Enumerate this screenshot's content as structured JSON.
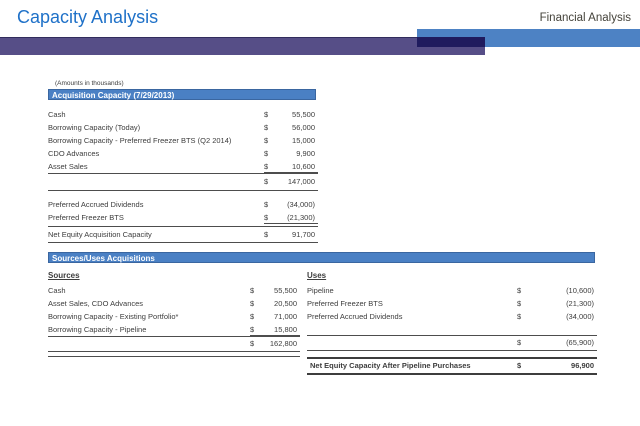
{
  "colors": {
    "title_blue": "#1F71C8",
    "bar_blue": "#4D82C4",
    "bar_purple": "#564E87",
    "bar_overlap": "#1F1B5E",
    "section_bar_blue": "#4A80C4",
    "text": "#3D3D3D",
    "line": "#4D4D4D"
  },
  "currency": "$",
  "header": {
    "title": "Capacity Analysis",
    "right_label": "Financial Analysis"
  },
  "note": "(Amounts in thousands)",
  "acquisition": {
    "header": "Acquisition Capacity (7/29/2013)",
    "rows": [
      {
        "label": "Cash",
        "value": "55,500"
      },
      {
        "label": "Borrowing Capacity (Today)",
        "value": "56,000"
      },
      {
        "label": "Borrowing Capacity - Preferred Freezer BTS (Q2 2014)",
        "value": "15,000"
      },
      {
        "label": "CDO Advances",
        "value": "9,900"
      },
      {
        "label": "Asset Sales",
        "value": "10,600"
      }
    ],
    "total_value": "147,000",
    "adjustments": [
      {
        "label": "Preferred Accrued Dividends",
        "value": "(34,000)"
      },
      {
        "label": "Preferred Freezer BTS",
        "value": "(21,300)"
      }
    ],
    "net": {
      "label": "Net Equity Acquisition Capacity",
      "value": "91,700"
    }
  },
  "sources_uses": {
    "header": "Sources/Uses Acquisitions",
    "sources": {
      "title": "Sources",
      "rows": [
        {
          "label": "Cash",
          "value": "55,500"
        },
        {
          "label": "Asset Sales, CDO Advances",
          "value": "20,500"
        },
        {
          "label": "Borrowing Capacity - Existing Portfolio*",
          "value": "71,000"
        },
        {
          "label": "Borrowing Capacity - Pipeline",
          "value": "15,800"
        }
      ],
      "total_value": "162,800"
    },
    "uses": {
      "title": "Uses",
      "rows": [
        {
          "label": "Pipeline",
          "value": "(10,600)"
        },
        {
          "label": "Preferred Freezer BTS",
          "value": "(21,300)"
        },
        {
          "label": "Preferred Accrued Dividends",
          "value": "(34,000)"
        }
      ],
      "total_value": "(65,900)"
    },
    "net": {
      "label": "Net Equity Capacity After Pipeline Purchases",
      "value": "96,900"
    }
  }
}
